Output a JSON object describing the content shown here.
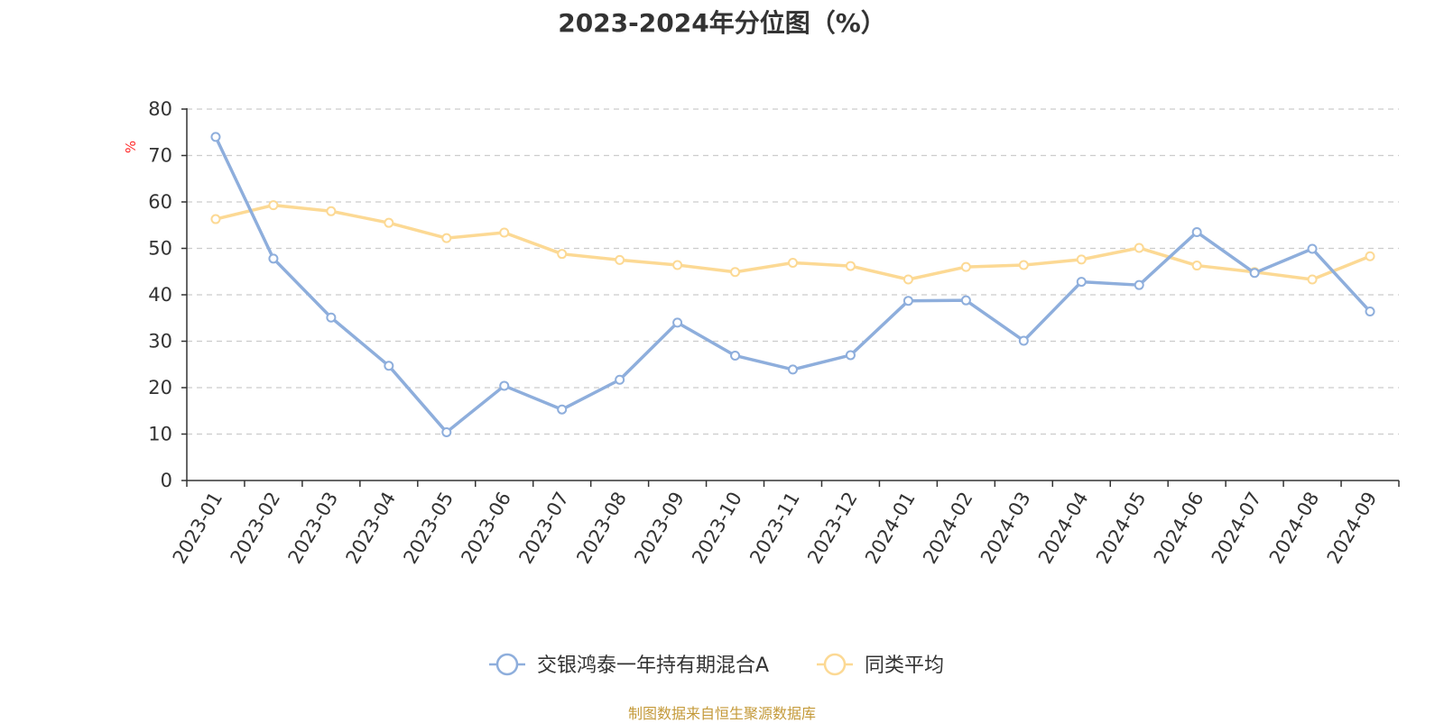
{
  "chart_data": {
    "type": "line",
    "title": "2023-2024年分位图（%）",
    "ylabel": "%",
    "ylim": [
      0,
      80
    ],
    "yticks": [
      0,
      10,
      20,
      30,
      40,
      50,
      60,
      70,
      80
    ],
    "grid": true,
    "legend_position": "bottom-center",
    "categories": [
      "2023-01",
      "2023-02",
      "2023-03",
      "2023-04",
      "2023-05",
      "2023-06",
      "2023-07",
      "2023-08",
      "2023-09",
      "2023-10",
      "2023-11",
      "2023-12",
      "2024-01",
      "2024-02",
      "2024-03",
      "2024-04",
      "2024-05",
      "2024-06",
      "2024-07",
      "2024-08",
      "2024-09"
    ],
    "series": [
      {
        "name": "交银鸿泰一年持有期混合A",
        "color": "#8eaedc",
        "values": [
          74.0,
          47.8,
          35.1,
          24.7,
          10.4,
          20.4,
          15.3,
          21.7,
          34.0,
          26.9,
          23.9,
          27.0,
          38.7,
          38.8,
          30.1,
          42.8,
          42.1,
          53.5,
          44.7,
          49.9,
          36.4
        ]
      },
      {
        "name": "同类平均",
        "color": "#fcd994",
        "values": [
          56.3,
          59.3,
          58.0,
          55.5,
          52.2,
          53.4,
          48.8,
          47.5,
          46.4,
          44.9,
          46.9,
          46.2,
          43.3,
          46.0,
          46.4,
          47.6,
          50.1,
          46.3,
          44.9,
          43.3,
          48.3
        ]
      }
    ]
  },
  "footer": {
    "source": "制图数据来自恒生聚源数据库"
  }
}
